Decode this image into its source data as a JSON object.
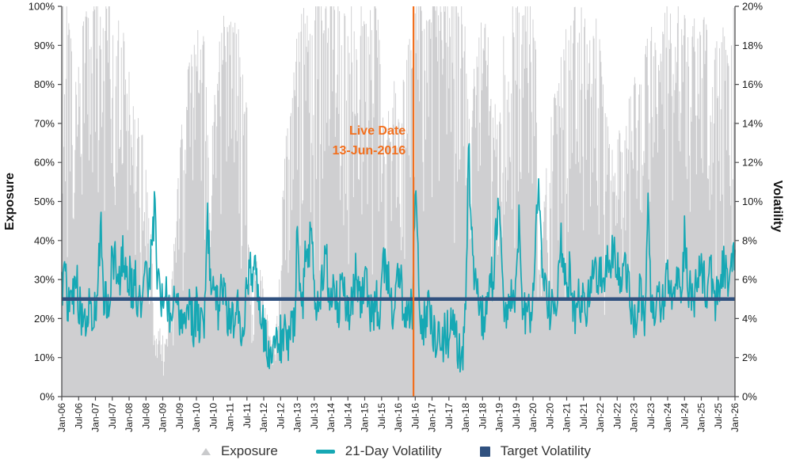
{
  "chart_data": {
    "type": "mixed",
    "title": "",
    "x_axis": {
      "months_span": 240,
      "tick_labels": [
        "Jan-06",
        "Jul-06",
        "Jan-07",
        "Jul-07",
        "Jan-08",
        "Jul-08",
        "Jan-09",
        "Jul-09",
        "Jan-10",
        "Jul-10",
        "Jan-11",
        "Jul-11",
        "Jan-12",
        "Jul-12",
        "Jan-13",
        "Jul-13",
        "Jan-14",
        "Jul-14",
        "Jan-15",
        "Jul-15",
        "Jan-16",
        "Jul-16",
        "Jan-17",
        "Jul-17",
        "Jan-18",
        "Jul-18",
        "Jan-19",
        "Jul-19",
        "Jan-20",
        "Jul-20",
        "Jan-21",
        "Jul-21",
        "Jan-22",
        "Jul-22",
        "Jan-23",
        "Jul-23",
        "Jan-24",
        "Jul-24",
        "Jan-25",
        "Jul-25",
        "Jan-26"
      ]
    },
    "left_axis": {
      "label": "Exposure",
      "min": 0,
      "max": 100,
      "tick_step": 10,
      "tick_labels": [
        "0%",
        "10%",
        "20%",
        "30%",
        "40%",
        "50%",
        "60%",
        "70%",
        "80%",
        "90%",
        "100%"
      ]
    },
    "right_axis": {
      "label": "Volatility",
      "min": 0,
      "max": 20,
      "tick_step": 2,
      "tick_labels": [
        "0%",
        "2%",
        "4%",
        "6%",
        "8%",
        "10%",
        "12%",
        "14%",
        "16%",
        "18%",
        "20%"
      ]
    },
    "grid": "off",
    "legend_position": "bottom-center",
    "series": [
      {
        "name": "Exposure",
        "type": "bars",
        "axis": "left",
        "color": "#cfcfd1",
        "monthly_values": [
          88,
          92,
          90,
          85,
          78,
          72,
          76,
          82,
          88,
          90,
          92,
          90,
          92,
          94,
          90,
          92,
          93,
          90,
          85,
          78,
          85,
          90,
          84,
          80,
          75,
          72,
          70,
          68,
          66,
          60,
          52,
          45,
          35,
          18,
          14,
          16,
          14,
          12,
          18,
          25,
          35,
          45,
          55,
          65,
          72,
          75,
          78,
          80,
          82,
          88,
          85,
          80,
          62,
          58,
          66,
          72,
          80,
          85,
          88,
          85,
          85,
          88,
          85,
          87,
          84,
          80,
          70,
          35,
          25,
          30,
          34,
          30,
          25,
          20,
          15,
          12,
          14,
          20,
          35,
          50,
          60,
          68,
          72,
          75,
          85,
          88,
          90,
          92,
          88,
          85,
          88,
          92,
          95,
          90,
          92,
          95,
          92,
          95,
          92,
          90,
          92,
          88,
          90,
          92,
          88,
          80,
          90,
          92,
          88,
          85,
          90,
          92,
          90,
          85,
          80,
          55,
          62,
          70,
          75,
          72,
          68,
          65,
          75,
          80,
          82,
          80,
          88,
          92,
          95,
          96,
          96,
          95,
          95,
          96,
          96,
          95,
          96,
          97,
          96,
          95,
          94,
          95,
          96,
          95,
          90,
          62,
          70,
          75,
          80,
          85,
          88,
          86,
          84,
          70,
          74,
          60,
          70,
          80,
          85,
          88,
          90,
          91,
          89,
          90,
          91,
          92,
          92,
          92,
          90,
          80,
          30,
          35,
          45,
          55,
          60,
          68,
          72,
          70,
          78,
          82,
          85,
          82,
          88,
          90,
          92,
          90,
          88,
          85,
          88,
          82,
          85,
          88,
          80,
          72,
          70,
          62,
          58,
          52,
          58,
          62,
          55,
          60,
          68,
          72,
          75,
          70,
          72,
          78,
          80,
          85,
          88,
          82,
          80,
          75,
          82,
          88,
          90,
          88,
          85,
          88,
          90,
          85,
          88,
          82,
          85,
          88,
          85,
          82,
          85,
          88,
          85,
          80,
          75,
          80,
          85,
          88,
          85,
          80,
          85,
          90,
          88
        ]
      },
      {
        "name": "21-Day Volatility",
        "type": "line",
        "axis": "right",
        "color": "#16a8b4",
        "monthly_values": [
          5.6,
          6.4,
          5.0,
          4.4,
          5.2,
          6.2,
          5.0,
          4.4,
          4.0,
          4.6,
          5.2,
          4.4,
          4.2,
          6.0,
          9.0,
          5.4,
          4.6,
          5.4,
          7.4,
          7.0,
          5.6,
          6.2,
          7.6,
          6.4,
          6.2,
          5.4,
          6.0,
          5.0,
          4.6,
          5.2,
          5.8,
          6.2,
          7.0,
          9.8,
          6.4,
          5.0,
          5.2,
          5.6,
          4.8,
          4.2,
          5.0,
          4.6,
          4.0,
          4.4,
          3.8,
          4.6,
          4.2,
          3.8,
          4.4,
          4.0,
          3.6,
          4.2,
          9.2,
          6.2,
          5.4,
          4.6,
          4.2,
          5.6,
          6.0,
          4.4,
          4.0,
          3.6,
          5.0,
          4.2,
          3.8,
          4.4,
          5.2,
          6.6,
          5.8,
          6.0,
          5.2,
          4.0,
          3.4,
          3.0,
          2.4,
          2.0,
          2.6,
          2.2,
          3.0,
          2.6,
          3.4,
          3.0,
          3.6,
          4.2,
          8.4,
          6.0,
          5.2,
          8.0,
          7.2,
          8.2,
          5.6,
          4.8,
          5.4,
          6.2,
          8.4,
          5.0,
          5.6,
          6.2,
          5.0,
          4.6,
          7.0,
          4.4,
          4.0,
          4.6,
          5.2,
          6.6,
          5.0,
          4.4,
          6.6,
          5.4,
          4.6,
          4.2,
          4.8,
          4.4,
          5.2,
          7.0,
          6.2,
          5.4,
          4.6,
          5.0,
          6.0,
          5.6,
          4.4,
          3.8,
          4.2,
          4.6,
          10.6,
          7.0,
          4.4,
          3.6,
          4.2,
          4.6,
          3.4,
          3.0,
          3.6,
          3.2,
          2.8,
          3.4,
          3.0,
          4.2,
          3.2,
          2.6,
          1.9,
          2.4,
          4.0,
          13.8,
          8.0,
          6.0,
          5.2,
          4.6,
          4.2,
          4.0,
          4.6,
          6.4,
          5.8,
          9.0,
          10.4,
          6.0,
          4.6,
          4.2,
          5.0,
          4.4,
          5.6,
          9.2,
          5.4,
          4.6,
          4.0,
          4.4,
          5.0,
          8.8,
          11.6,
          7.0,
          5.6,
          5.0,
          4.6,
          4.2,
          4.8,
          5.4,
          8.0,
          6.2,
          5.6,
          6.4,
          5.0,
          4.4,
          5.2,
          4.6,
          5.4,
          4.8,
          5.6,
          6.2,
          7.4,
          5.8,
          6.6,
          6.0,
          6.8,
          6.2,
          7.0,
          7.6,
          6.4,
          5.6,
          6.8,
          6.2,
          5.4,
          4.6,
          4.0,
          3.4,
          5.8,
          4.4,
          3.8,
          9.2,
          5.6,
          5.0,
          4.4,
          5.2,
          4.8,
          5.6,
          5.8,
          5.2,
          4.6,
          5.4,
          6.2,
          5.6,
          8.2,
          6.4,
          5.2,
          4.6,
          5.8,
          6.6,
          7.0,
          5.8,
          5.2,
          6.4,
          5.6,
          4.8,
          5.4,
          6.2,
          6.8,
          5.8,
          6.4,
          7.2,
          7.0
        ]
      },
      {
        "name": "Target Volatility",
        "type": "hline",
        "axis": "right",
        "color": "#30517f",
        "value": 5.0
      }
    ],
    "annotation": {
      "label_line1": "Live Date",
      "label_line2": "13-Jun-2016",
      "color": "#f26f1d",
      "month_index": 125.4
    }
  },
  "legend": {
    "items": [
      {
        "label": "Exposure",
        "marker": "triangle",
        "color": "#c9cacc"
      },
      {
        "label": "21-Day Volatility",
        "marker": "dash",
        "color": "#16a8b4"
      },
      {
        "label": "Target Volatility",
        "marker": "square",
        "color": "#30517f"
      }
    ]
  }
}
